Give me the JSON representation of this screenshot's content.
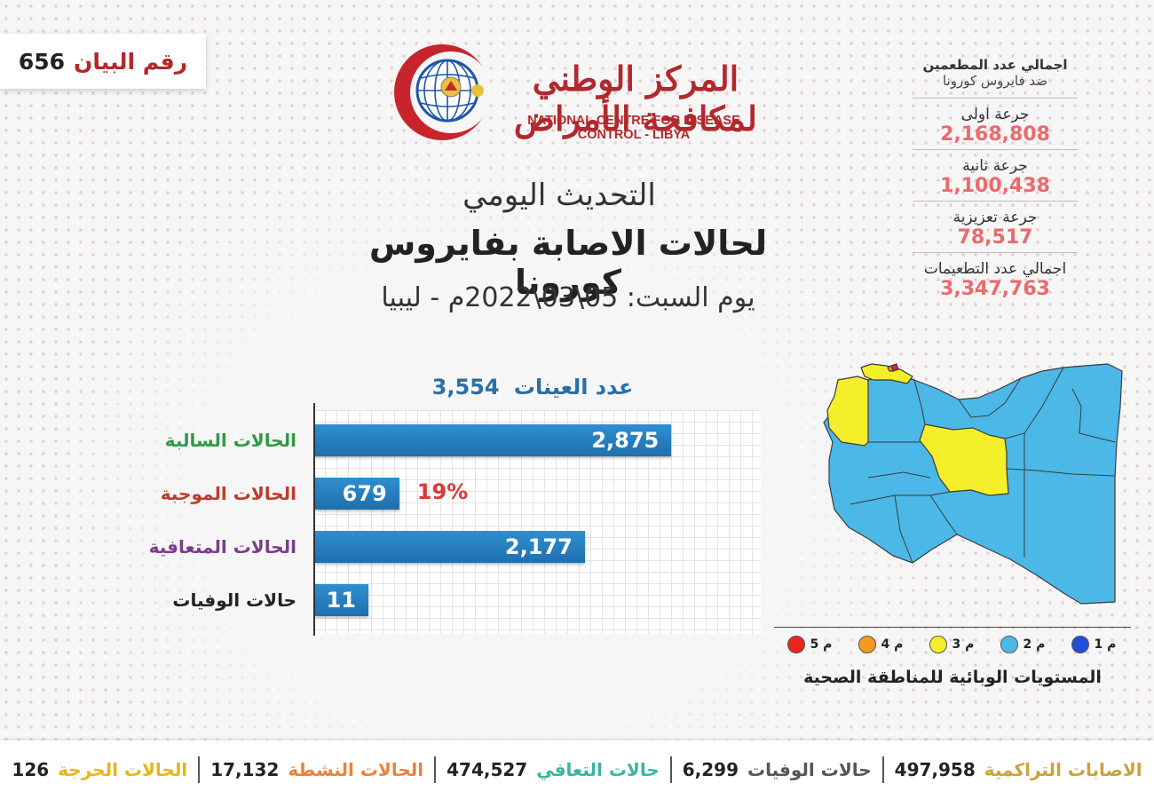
{
  "statement": {
    "label": "رقم البيان",
    "number": "656"
  },
  "org": {
    "name_ar": "المركز الوطني لمكافحة الأمراض",
    "name_en": "NATIONAL CENTRE FOR DISEASE CONTROL - LIBYA"
  },
  "titles": {
    "line1": "التحديث اليومي",
    "line2": "لحالات الاصابة بفايروس كورونا",
    "line3": "يوم السبت: 05\\03\\2022م - ليبيا"
  },
  "vaccination": {
    "header1": "اجمالي عدد المطعمين",
    "header2": "ضد فايروس كورونا",
    "items": [
      {
        "label": "جرعة اولى",
        "value": "2,168,808"
      },
      {
        "label": "جرعة ثانية",
        "value": "1,100,438"
      },
      {
        "label": "جرعة تعزيزية",
        "value": "78,517"
      },
      {
        "label": "اجمالي عدد التطعيمات",
        "value": "3,347,763"
      }
    ]
  },
  "chart_data": {
    "type": "bar",
    "orientation": "horizontal",
    "title": "عدد العينات",
    "title_value": "3,554",
    "categories": [
      "الحالات السالبة",
      "الحالات الموجبة",
      "الحالات المتعافية",
      "حالات الوفيات"
    ],
    "values": [
      2875,
      679,
      2177,
      11
    ],
    "value_labels": [
      "2,875",
      "679",
      "2,177",
      "11"
    ],
    "category_colors": [
      "#2e9a46",
      "#c0392b",
      "#7a3d8c",
      "#222222"
    ],
    "annotation": {
      "category": "الحالات الموجبة",
      "text": "19%"
    },
    "bar_color": "#2a7fc0",
    "xlim": [
      0,
      3554
    ],
    "grid": true
  },
  "map": {
    "caption": "المستويات الوبائية للمناطقة الصحية",
    "legend": [
      {
        "label": "م 1",
        "color": "#1e4fd6"
      },
      {
        "label": "م 2",
        "color": "#4cb8e8"
      },
      {
        "label": "م 3",
        "color": "#f4ef2a"
      },
      {
        "label": "م 4",
        "color": "#f39a1f"
      },
      {
        "label": "م 5",
        "color": "#e8261f"
      }
    ]
  },
  "footer": [
    {
      "label": "الحالات الحرجة",
      "value": "126",
      "color": "#e8b518"
    },
    {
      "label": "الحالات النشطة",
      "value": "17,132",
      "color": "#e8833a"
    },
    {
      "label": "حالات التعافي",
      "value": "474,527",
      "color": "#3ab4a0"
    },
    {
      "label": "حالات الوفيات",
      "value": "6,299",
      "color": "#555555"
    },
    {
      "label": "الاصابات التراكمية",
      "value": "497,958",
      "color": "#c9a33d"
    }
  ]
}
